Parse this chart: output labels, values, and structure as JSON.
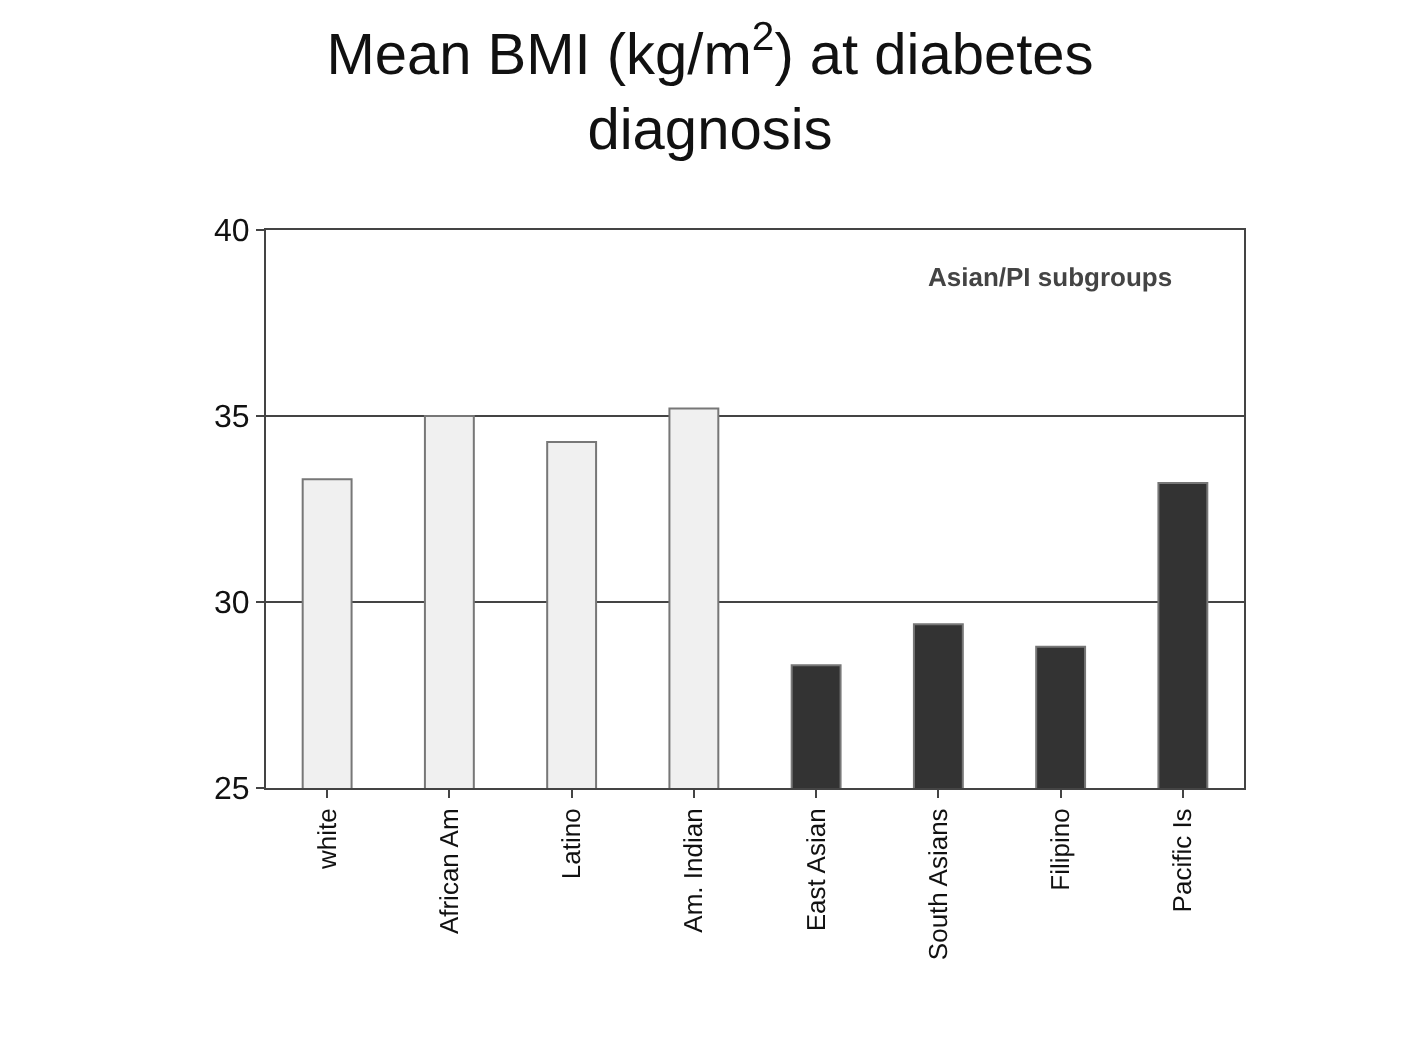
{
  "chart_data": {
    "type": "bar",
    "title": "Mean BMI (kg/m$^{2}$) at diabetes diagnosis",
    "categories": [
      "white",
      "African Am",
      "Latino",
      "Am. Indian",
      "East Asian",
      "South Asians",
      "Filipino",
      "Pacific Is"
    ],
    "values": [
      33.3,
      35.0,
      34.3,
      35.2,
      28.3,
      29.4,
      28.8,
      33.2
    ],
    "colors": [
      "#f0f0f0",
      "#f0f0f0",
      "#f0f0f0",
      "#f0f0f0",
      "#333333",
      "#333333",
      "#333333",
      "#333333"
    ],
    "ylim": [
      25,
      40
    ],
    "yticks": [
      25,
      30,
      35,
      40
    ],
    "grid": "y",
    "annotations": [
      "Asian/PI subgroups"
    ]
  }
}
